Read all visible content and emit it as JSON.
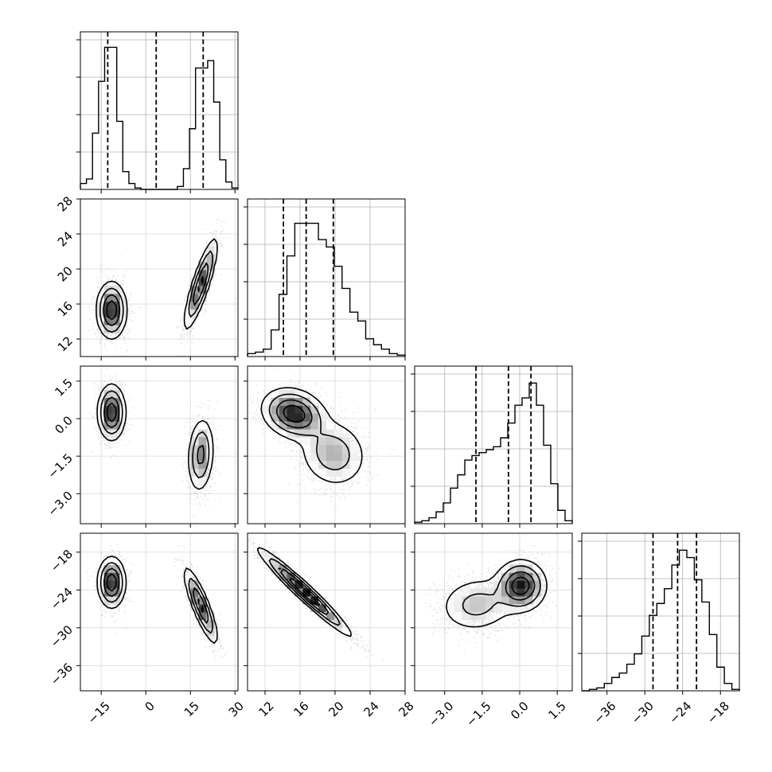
{
  "chart_data": {
    "type": "corner",
    "params": [
      {
        "index": 0,
        "range": [
          -22,
          31
        ],
        "ticks": [
          -15,
          0,
          15,
          30
        ],
        "tick_labels": [
          "−15",
          "0",
          "15",
          "30"
        ],
        "quantiles": [
          -12.8,
          3.5,
          19.3
        ],
        "hist_counts": [
          0.04,
          0.07,
          0.38,
          0.73,
          0.96,
          0.96,
          0.46,
          0.12,
          0.04,
          0.01,
          0.0,
          0.0,
          0.0,
          0.0,
          0.0,
          0.0,
          0.02,
          0.14,
          0.41,
          0.82,
          0.82,
          0.87,
          0.59,
          0.2,
          0.05,
          0.01
        ]
      },
      {
        "index": 1,
        "range": [
          10,
          28
        ],
        "ticks": [
          12,
          16,
          20,
          24,
          28
        ],
        "tick_labels": [
          "12",
          "16",
          "20",
          "24",
          "28"
        ],
        "quantiles": [
          14.1,
          16.7,
          19.8
        ],
        "hist_counts": [
          0.02,
          0.03,
          0.05,
          0.18,
          0.42,
          0.68,
          0.9,
          0.9,
          0.9,
          0.79,
          0.74,
          0.61,
          0.46,
          0.3,
          0.24,
          0.12,
          0.08,
          0.05,
          0.02,
          0.01
        ]
      },
      {
        "index": 2,
        "range": [
          -4.2,
          2.1
        ],
        "ticks": [
          -3.0,
          -1.5,
          0.0,
          1.5
        ],
        "tick_labels": [
          "−3.0",
          "−1.5",
          "0.0",
          "1.5"
        ],
        "quantiles": [
          -1.75,
          -0.45,
          0.45
        ],
        "hist_counts": [
          0.01,
          0.02,
          0.04,
          0.08,
          0.14,
          0.24,
          0.33,
          0.43,
          0.46,
          0.48,
          0.5,
          0.52,
          0.58,
          0.68,
          0.8,
          0.85,
          0.95,
          0.8,
          0.53,
          0.27,
          0.09,
          0.02
        ]
      },
      {
        "index": 3,
        "range": [
          -40,
          -15
        ],
        "ticks": [
          -36,
          -30,
          -24,
          -18
        ],
        "tick_labels": [
          "−36",
          "−30",
          "−24",
          "−18"
        ],
        "quantiles": [
          -28.7,
          -24.8,
          -21.8
        ],
        "hist_counts": [
          0.0,
          0.01,
          0.02,
          0.05,
          0.09,
          0.12,
          0.18,
          0.25,
          0.37,
          0.51,
          0.59,
          0.69,
          0.85,
          0.95,
          0.9,
          0.75,
          0.6,
          0.38,
          0.16,
          0.05,
          0.01
        ]
      }
    ],
    "panels_2d": [
      {
        "row": 1,
        "col": 0,
        "modes": [
          {
            "cx": -11.5,
            "cy": 15.3,
            "sx": 2.5,
            "sy": 1.6,
            "rho": 0.0,
            "w": 0.55
          },
          {
            "cx": 18.5,
            "cy": 18.3,
            "sx": 2.8,
            "sy": 2.6,
            "rho": 0.85,
            "w": 0.45
          }
        ]
      },
      {
        "row": 2,
        "col": 0,
        "modes": [
          {
            "cx": -11.5,
            "cy": 0.25,
            "sx": 2.3,
            "sy": 0.55,
            "rho": 0.0,
            "w": 0.55
          },
          {
            "cx": 18.5,
            "cy": -1.45,
            "sx": 2.2,
            "sy": 0.75,
            "rho": 0.15,
            "w": 0.45
          }
        ]
      },
      {
        "row": 2,
        "col": 1,
        "modes": [
          {
            "cx": 15.3,
            "cy": 0.2,
            "sx": 1.8,
            "sy": 0.5,
            "rho": -0.2,
            "w": 0.58
          },
          {
            "cx": 19.8,
            "cy": -1.4,
            "sx": 2.0,
            "sy": 0.7,
            "rho": -0.1,
            "w": 0.42
          }
        ]
      },
      {
        "row": 3,
        "col": 0,
        "modes": [
          {
            "cx": -11.5,
            "cy": -22.8,
            "sx": 2.3,
            "sy": 2.0,
            "rho": 0.0,
            "w": 0.55
          },
          {
            "cx": 18.5,
            "cy": -26.5,
            "sx": 2.8,
            "sy": 3.0,
            "rho": -0.85,
            "w": 0.45
          }
        ]
      },
      {
        "row": 3,
        "col": 1,
        "modes": [
          {
            "cx": 16.5,
            "cy": -24.3,
            "sx": 2.6,
            "sy": 3.4,
            "rho": -0.97,
            "w": 1.0
          }
        ]
      },
      {
        "row": 3,
        "col": 2,
        "modes": [
          {
            "cx": 0.05,
            "cy": -23.3,
            "sx": 0.5,
            "sy": 2.0,
            "rho": 0.0,
            "w": 0.58
          },
          {
            "cx": -1.7,
            "cy": -26.3,
            "sx": 0.8,
            "sy": 2.3,
            "rho": 0.1,
            "w": 0.42
          }
        ]
      }
    ]
  }
}
